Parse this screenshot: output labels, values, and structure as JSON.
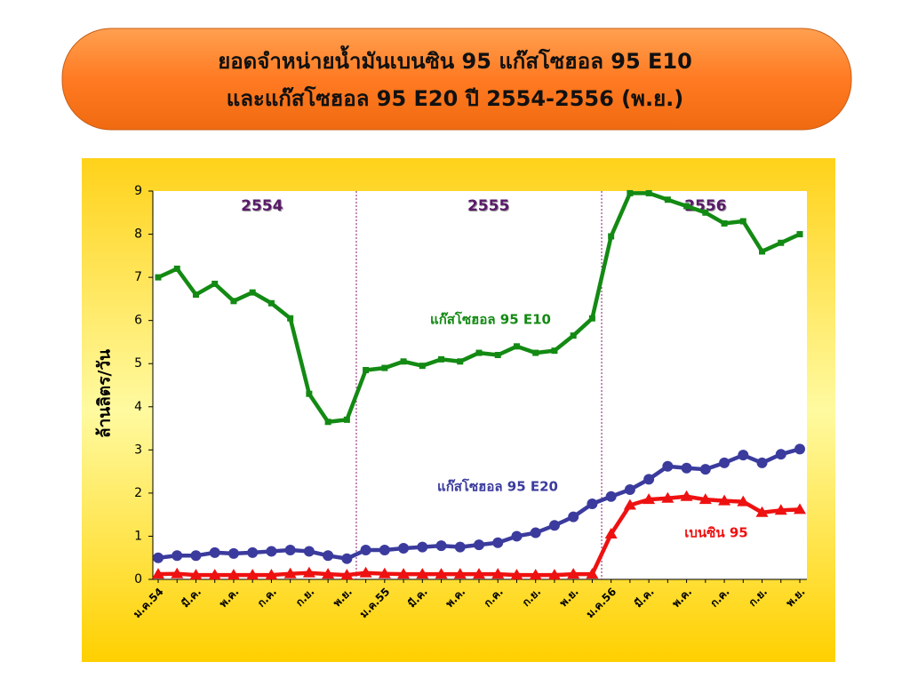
{
  "chart_data": {
    "type": "line",
    "title": "ยอดจำหน่ายน้ำมันเบนซิน 95 แก๊สโซฮอล 95 E10",
    "subtitle": "และแก๊สโซฮอล 95 E20 ปี 2554-2556 (พ.ย.)",
    "y_label": "ล้านลิตร/วัน",
    "annotations": [
      "2554",
      "2555",
      "2556"
    ],
    "categories": [
      "ม.ค.54",
      null,
      "มี.ค.",
      null,
      "พ.ค.",
      null,
      "ก.ค.",
      null,
      "ก.ย.",
      null,
      "พ.ย.",
      null,
      "ม.ค.55",
      null,
      "มี.ค.",
      null,
      "พ.ค.",
      null,
      "ก.ค.",
      null,
      "ก.ย.",
      null,
      "พ.ย.",
      null,
      "ม.ค.56",
      null,
      "มี.ค.",
      null,
      "พ.ค.",
      null,
      "ก.ค.",
      null,
      "ก.ย.",
      null,
      "พ.ย."
    ],
    "series": [
      {
        "name": "แก๊สโซฮอล 95 E10",
        "color": "#138a13",
        "marker": "square",
        "values": [
          7.0,
          7.2,
          6.6,
          6.85,
          6.45,
          6.65,
          6.4,
          6.05,
          4.3,
          3.65,
          3.7,
          4.85,
          4.9,
          5.05,
          4.95,
          5.1,
          5.05,
          5.25,
          5.2,
          5.4,
          5.25,
          5.3,
          5.65,
          6.05,
          7.95,
          8.95,
          8.95,
          8.8,
          8.65,
          8.5,
          8.25,
          8.3,
          7.6,
          7.8,
          8.0
        ]
      },
      {
        "name": "แก๊สโซฮอล 95 E20",
        "color": "#3b3b9e",
        "marker": "circle",
        "values": [
          0.5,
          0.55,
          0.55,
          0.62,
          0.6,
          0.62,
          0.65,
          0.68,
          0.65,
          0.55,
          0.48,
          0.68,
          0.68,
          0.72,
          0.75,
          0.78,
          0.75,
          0.8,
          0.85,
          1.0,
          1.08,
          1.25,
          1.45,
          1.75,
          1.92,
          2.08,
          2.32,
          2.62,
          2.58,
          2.55,
          2.7,
          2.88,
          2.7,
          2.9,
          3.02
        ]
      },
      {
        "name": "เบนซิน 95",
        "color": "#ee1111",
        "marker": "triangle",
        "values": [
          0.12,
          0.13,
          0.1,
          0.1,
          0.1,
          0.1,
          0.1,
          0.13,
          0.15,
          0.12,
          0.1,
          0.15,
          0.13,
          0.12,
          0.12,
          0.12,
          0.12,
          0.12,
          0.12,
          0.1,
          0.1,
          0.1,
          0.12,
          0.12,
          1.05,
          1.72,
          1.85,
          1.88,
          1.92,
          1.85,
          1.82,
          1.8,
          1.55,
          1.6,
          1.62
        ]
      }
    ],
    "ylim": [
      0,
      9
    ],
    "yticks": [
      0,
      1,
      2,
      3,
      4,
      5,
      6,
      7,
      8,
      9
    ],
    "grid": false
  }
}
